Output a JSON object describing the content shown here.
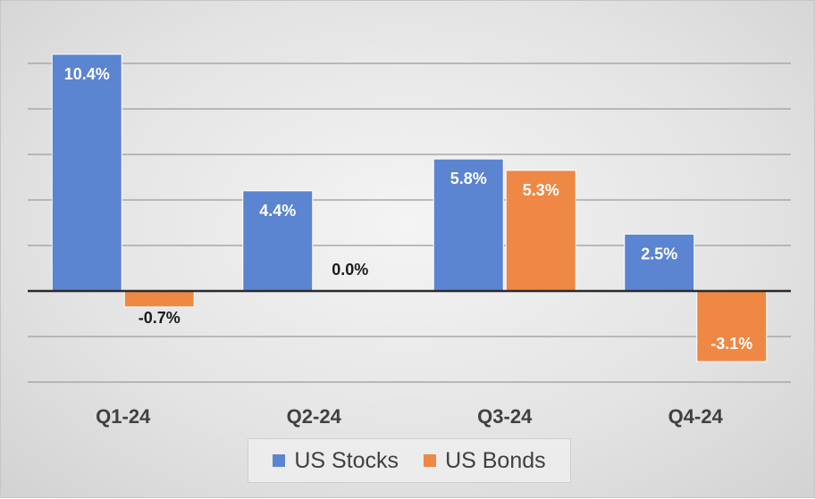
{
  "chart_data": {
    "type": "bar",
    "categories": [
      "Q1-24",
      "Q2-24",
      "Q3-24",
      "Q4-24"
    ],
    "series": [
      {
        "name": "US Stocks",
        "values": [
          10.4,
          4.4,
          5.8,
          2.5
        ],
        "labels": [
          "10.4%",
          "4.4%",
          "5.8%",
          "2.5%"
        ],
        "color": "#5b84d1"
      },
      {
        "name": "US Bonds",
        "values": [
          -0.7,
          0.0,
          5.3,
          -3.1
        ],
        "labels": [
          "-0.7%",
          "0.0%",
          "5.3%",
          "-3.1%"
        ],
        "color": "#ee8844"
      }
    ],
    "ylim": [
      -4,
      10.5
    ],
    "gridlines": [
      -4,
      -2,
      0,
      2,
      4,
      6,
      8,
      10
    ],
    "grid": true,
    "legend_position": "bottom",
    "title": "",
    "xlabel": "",
    "ylabel": ""
  }
}
